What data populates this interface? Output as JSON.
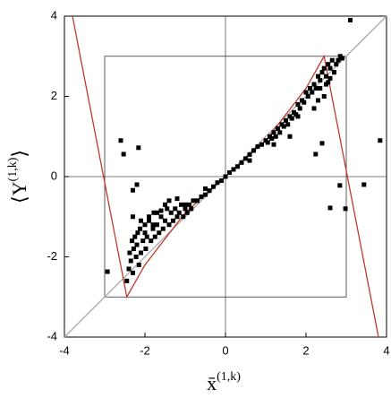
{
  "chart_data": {
    "type": "scatter",
    "xlabel": "x̄",
    "xlabel_sup": "(1,k)",
    "ylabel": "⟨Y",
    "ylabel_sup": "(1,k)",
    "ylabel_end": "⟩",
    "xlim": [
      -4,
      4
    ],
    "ylim": [
      -4,
      4
    ],
    "xticks": [
      -4,
      -2,
      0,
      2,
      4
    ],
    "yticks": [
      -4,
      -2,
      0,
      2,
      4
    ],
    "box": [
      -3,
      3
    ],
    "series": [
      {
        "kind": "points",
        "color": "#000000",
        "x": [
          -2.93,
          -2.6,
          -2.53,
          -2.16,
          -2.3,
          -2.2,
          -2.45,
          -2.4,
          -2.38,
          -2.35,
          -2.32,
          -2.3,
          -2.28,
          -2.25,
          -2.22,
          -2.2,
          -2.18,
          -2.15,
          -2.12,
          -2.1,
          -2.05,
          -2.0,
          -1.98,
          -1.95,
          -1.9,
          -1.85,
          -1.8,
          -1.78,
          -1.75,
          -1.7,
          -1.65,
          -1.6,
          -1.55,
          -1.5,
          -1.45,
          -1.4,
          -1.35,
          -1.3,
          -1.25,
          -1.2,
          -1.15,
          -1.1,
          -1.05,
          -1.0,
          -0.95,
          -0.9,
          -0.85,
          -0.8,
          -0.7,
          -0.6,
          -0.5,
          -0.4,
          -0.3,
          -0.2,
          -0.1,
          0.0,
          0.1,
          0.2,
          0.3,
          0.4,
          0.5,
          0.6,
          0.7,
          0.8,
          0.9,
          1.0,
          1.05,
          1.1,
          1.15,
          1.2,
          1.25,
          1.3,
          1.35,
          1.4,
          1.45,
          1.5,
          1.55,
          1.6,
          1.65,
          1.7,
          1.75,
          1.8,
          1.85,
          1.9,
          1.95,
          2.0,
          2.05,
          2.1,
          2.15,
          2.2,
          2.25,
          2.3,
          2.35,
          2.4,
          2.45,
          2.5,
          2.55,
          2.6,
          2.65,
          2.7,
          2.75,
          2.8,
          2.85,
          2.9,
          2.5,
          2.6,
          2.7,
          2.35,
          2.45,
          2.55,
          -2.0,
          -1.9,
          -1.8,
          -1.7,
          -1.6,
          -1.5,
          -2.1,
          -2.3,
          -1.4,
          -1.2,
          3.1,
          3.84,
          2.84,
          2.6,
          2.98,
          3.44,
          2.4,
          2.24,
          1.8,
          1.6,
          2.2,
          2.3,
          -0.5,
          0.6,
          -1.0,
          1.2
        ],
        "y": [
          -2.37,
          0.9,
          0.56,
          0.72,
          -0.34,
          -0.2,
          -2.6,
          -2.3,
          -1.9,
          -2.1,
          -1.6,
          -2.4,
          -1.8,
          -1.5,
          -2.0,
          -1.7,
          -1.4,
          -2.2,
          -1.3,
          -1.9,
          -1.6,
          -1.2,
          -1.8,
          -1.5,
          -1.1,
          -1.6,
          -1.3,
          -0.9,
          -1.5,
          -1.2,
          -1.4,
          -1.0,
          -1.3,
          -1.1,
          -0.8,
          -1.2,
          -0.9,
          -1.1,
          -0.8,
          -1.0,
          -0.9,
          -0.7,
          -1.0,
          -0.8,
          -0.9,
          -0.7,
          -0.8,
          -0.6,
          -0.6,
          -0.5,
          -0.45,
          -0.35,
          -0.25,
          -0.15,
          -0.1,
          0.0,
          0.1,
          0.18,
          0.25,
          0.35,
          0.45,
          0.55,
          0.65,
          0.75,
          0.8,
          0.9,
          0.85,
          1.0,
          0.95,
          1.1,
          1.0,
          1.2,
          1.1,
          1.3,
          1.25,
          1.4,
          1.3,
          1.5,
          1.45,
          1.6,
          1.55,
          1.8,
          1.7,
          1.9,
          1.85,
          2.1,
          2.0,
          2.2,
          2.1,
          2.3,
          2.2,
          2.5,
          2.4,
          2.6,
          2.7,
          2.5,
          2.8,
          2.7,
          2.9,
          2.6,
          2.8,
          2.9,
          3.0,
          2.95,
          2.3,
          2.45,
          2.6,
          2.2,
          2.0,
          2.35,
          -1.4,
          -1.0,
          -1.2,
          -0.9,
          -0.85,
          -0.7,
          -1.1,
          -1.0,
          -0.6,
          -0.55,
          3.9,
          0.9,
          -0.22,
          -0.78,
          -0.8,
          -0.2,
          0.83,
          0.56,
          1.5,
          1.0,
          1.7,
          1.9,
          -0.3,
          0.4,
          -0.7,
          0.8
        ]
      },
      {
        "kind": "line",
        "color": "#c0392b",
        "x": [
          -3.8,
          -2.45,
          -2.0,
          -1.0,
          0.0,
          1.0,
          2.0,
          2.45,
          3.8
        ],
        "y": [
          4,
          -3,
          -2.2,
          -0.9,
          0,
          0.9,
          2.2,
          3,
          -4
        ]
      },
      {
        "kind": "line",
        "color": "#aaaaaa",
        "x": [
          -4,
          4
        ],
        "y": [
          -4,
          4
        ]
      }
    ]
  }
}
